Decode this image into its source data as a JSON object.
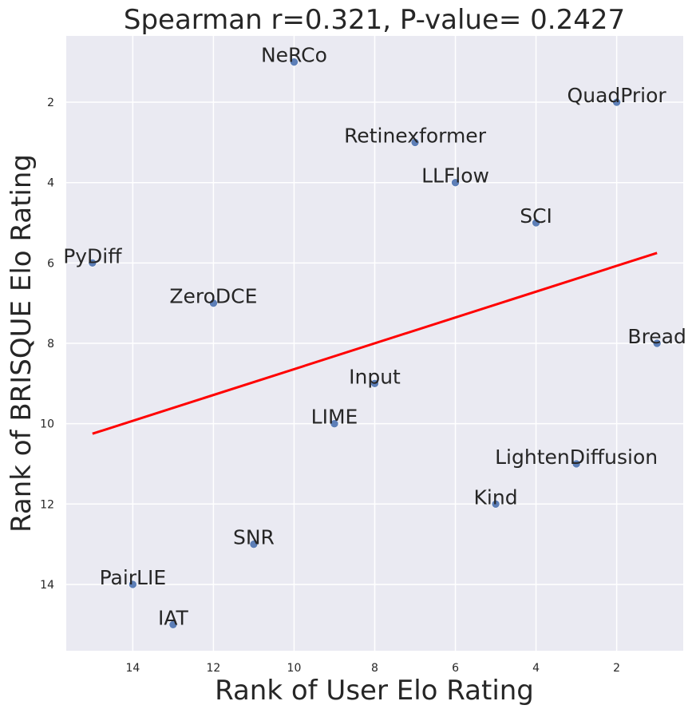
{
  "chart_data": {
    "type": "scatter",
    "title": "Spearman r=0.321, P-value= 0.2427",
    "xlabel": "Rank of User Elo Rating",
    "ylabel": "Rank of BRISQUE Elo Rating",
    "xlim": [
      15.65,
      0.35
    ],
    "ylim": [
      15.65,
      0.35
    ],
    "x_inverted": true,
    "y_inverted": true,
    "xticks": [
      14,
      12,
      10,
      8,
      6,
      4,
      2
    ],
    "yticks": [
      2,
      4,
      6,
      8,
      10,
      12,
      14
    ],
    "grid": true,
    "points": [
      {
        "label": "NeRCo",
        "x": 10,
        "y": 1
      },
      {
        "label": "QuadPrior",
        "x": 2,
        "y": 2
      },
      {
        "label": "Retinexformer",
        "x": 7,
        "y": 3
      },
      {
        "label": "LLFlow",
        "x": 6,
        "y": 4
      },
      {
        "label": "SCI",
        "x": 4,
        "y": 5
      },
      {
        "label": "PyDiff",
        "x": 15,
        "y": 6
      },
      {
        "label": "ZeroDCE",
        "x": 12,
        "y": 7
      },
      {
        "label": "Bread",
        "x": 1,
        "y": 8
      },
      {
        "label": "Input",
        "x": 8,
        "y": 9
      },
      {
        "label": "LIME",
        "x": 9,
        "y": 10
      },
      {
        "label": "LightenDiffusion",
        "x": 3,
        "y": 11
      },
      {
        "label": "Kind",
        "x": 5,
        "y": 12
      },
      {
        "label": "SNR",
        "x": 11,
        "y": 13
      },
      {
        "label": "PairLIE",
        "x": 14,
        "y": 14
      },
      {
        "label": "IAT",
        "x": 13,
        "y": 15
      }
    ],
    "regression_line": {
      "x": [
        15,
        1
      ],
      "y": [
        10.25,
        5.75
      ],
      "color": "#ff0000"
    },
    "colors": {
      "point": "#4c72b0",
      "background": "#eaeaf2",
      "grid": "#ffffff",
      "line": "#ff0000"
    }
  }
}
